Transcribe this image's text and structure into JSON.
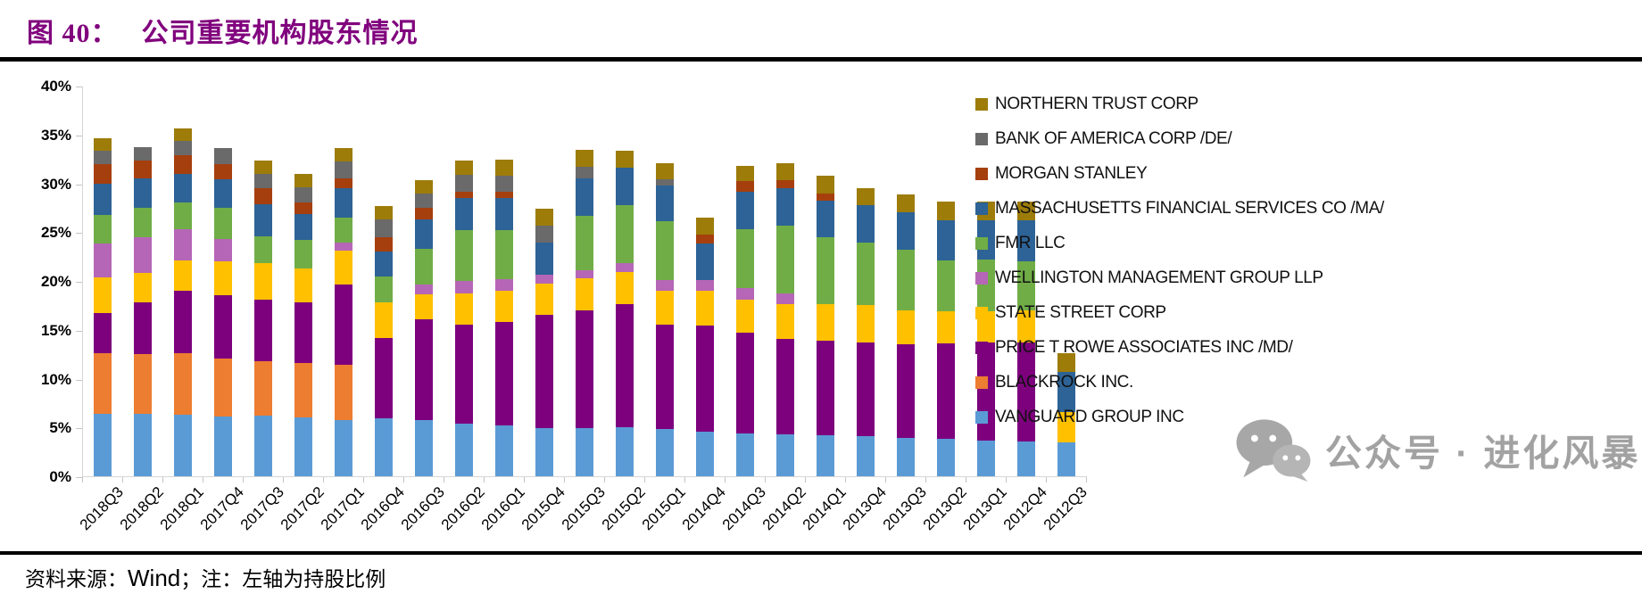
{
  "header": {
    "figure_label": "图 40：",
    "title_text": "公司重要机构股东情况",
    "title_color": "#80007d"
  },
  "footer": {
    "source_prefix": "资料来源：",
    "source_brand": "Wind",
    "source_suffix": "；注：左轴为持股比例"
  },
  "watermark": {
    "icon": "wechat-icon",
    "text": "公众号 · 进化风暴",
    "color": "#a2a2a2"
  },
  "chart_data": {
    "type": "bar",
    "subtype": "stacked-vertical",
    "title": "公司重要机构股东情况",
    "xlabel": "",
    "ylabel": "持股比例 (左轴)",
    "ylim": [
      0,
      40
    ],
    "grid": false,
    "legend_position": "right",
    "yticks": [
      "40%",
      "35%",
      "30%",
      "25%",
      "20%",
      "15%",
      "10%",
      "5%",
      "0%"
    ],
    "categories": [
      "2018Q3",
      "2018Q2",
      "2018Q1",
      "2017Q4",
      "2017Q3",
      "2017Q2",
      "2017Q1",
      "2016Q4",
      "2016Q3",
      "2016Q2",
      "2016Q1",
      "2015Q4",
      "2015Q3",
      "2015Q2",
      "2015Q1",
      "2014Q4",
      "2014Q3",
      "2014Q2",
      "2014Q1",
      "2013Q4",
      "2013Q3",
      "2013Q2",
      "2013Q1",
      "2012Q4",
      "2012Q3"
    ],
    "series_note": "values are holding percentages; series listed bottom-to-top of stack",
    "series": [
      {
        "name": "VANGUARD GROUP INC",
        "color": "#5b9bd5",
        "values": [
          6.4,
          6.4,
          6.3,
          6.1,
          6.2,
          6.0,
          5.8,
          5.9,
          5.8,
          5.4,
          5.2,
          4.9,
          4.9,
          5.0,
          4.8,
          4.6,
          4.4,
          4.3,
          4.2,
          4.1,
          3.9,
          3.8,
          3.7,
          3.6,
          3.5
        ]
      },
      {
        "name": "BLACKROCK INC.",
        "color": "#ed7d31",
        "values": [
          6.2,
          6.1,
          6.3,
          6.0,
          5.6,
          5.6,
          5.6,
          0,
          0,
          0,
          0,
          0,
          0,
          0,
          0,
          0,
          0,
          0,
          0,
          0,
          0,
          0,
          0,
          0,
          0
        ]
      },
      {
        "name": "PRICE T ROWE ASSOCIATES INC /MD/",
        "color": "#7d007d",
        "values": [
          4.1,
          5.3,
          6.4,
          6.4,
          6.3,
          6.2,
          8.2,
          8.3,
          10.3,
          10.1,
          10.6,
          11.6,
          12.1,
          12.6,
          10.7,
          10.8,
          10.3,
          9.8,
          9.7,
          9.6,
          9.6,
          9.8,
          10.0,
          10.1,
          0
        ]
      },
      {
        "name": "STATE STREET CORP",
        "color": "#ffc000",
        "values": [
          3.7,
          3.0,
          3.1,
          3.5,
          3.7,
          3.5,
          3.5,
          3.6,
          2.5,
          3.2,
          3.2,
          3.2,
          3.3,
          3.3,
          3.5,
          3.6,
          3.4,
          3.5,
          3.7,
          3.8,
          3.5,
          3.3,
          3.2,
          3.3,
          3.1
        ]
      },
      {
        "name": "WELLINGTON MANAGEMENT GROUP LLP",
        "color": "#b666b6",
        "values": [
          3.4,
          3.7,
          3.2,
          2.3,
          0,
          0,
          0.8,
          0,
          1.0,
          1.3,
          1.2,
          0.9,
          0.8,
          0.9,
          1.1,
          1.1,
          1.2,
          1.1,
          0,
          0,
          0,
          0,
          0,
          0,
          0
        ]
      },
      {
        "name": "FMR LLC",
        "color": "#70ad47",
        "values": [
          3.0,
          3.0,
          2.7,
          3.2,
          2.8,
          2.9,
          2.6,
          2.7,
          3.7,
          5.2,
          5.0,
          0,
          5.6,
          6.0,
          6.0,
          0,
          6.0,
          7.0,
          6.9,
          6.4,
          6.2,
          5.2,
          5.3,
          5.0,
          0
        ]
      },
      {
        "name": "MASSACHUSETTS FINANCIAL SERVICES CO /MA/",
        "color": "#2d6396",
        "values": [
          3.2,
          3.0,
          3.0,
          2.9,
          3.3,
          2.7,
          3.0,
          2.5,
          3.0,
          3.3,
          3.3,
          3.3,
          3.8,
          3.8,
          3.7,
          3.7,
          3.8,
          3.8,
          3.7,
          3.9,
          3.8,
          4.1,
          4.0,
          4.2,
          4.1
        ]
      },
      {
        "name": "MORGAN STANLEY",
        "color": "#a63f0e",
        "values": [
          2.0,
          1.8,
          1.9,
          1.6,
          1.6,
          1.1,
          1.0,
          1.5,
          1.2,
          0.6,
          0.6,
          0,
          0,
          0,
          0,
          1.0,
          1.1,
          0.8,
          0.8,
          0,
          0,
          0,
          0,
          0,
          0
        ]
      },
      {
        "name": "BANK OF AMERICA CORP /DE/",
        "color": "#6a6a6a",
        "values": [
          1.3,
          1.4,
          1.4,
          1.6,
          1.5,
          1.6,
          1.7,
          1.8,
          1.5,
          1.8,
          1.7,
          1.8,
          1.2,
          0,
          0.6,
          0,
          0,
          0,
          0,
          0,
          0,
          0,
          0,
          0,
          0
        ]
      },
      {
        "name": "NORTHERN TRUST CORP",
        "color": "#9d7c0a",
        "values": [
          1.3,
          0,
          1.3,
          0,
          1.3,
          1.4,
          1.4,
          1.4,
          1.3,
          1.4,
          1.6,
          1.7,
          1.7,
          1.7,
          1.7,
          1.7,
          1.6,
          1.8,
          1.8,
          1.7,
          1.9,
          1.9,
          1.9,
          1.9,
          1.9
        ]
      }
    ]
  }
}
